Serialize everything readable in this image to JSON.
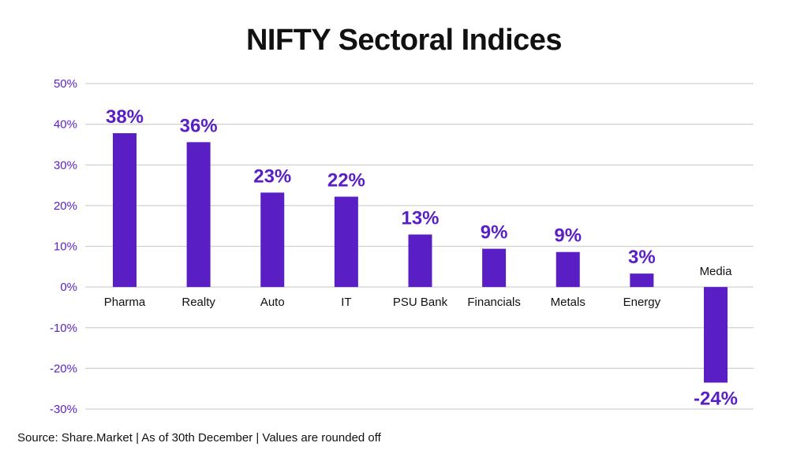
{
  "chart_data": {
    "type": "bar",
    "title": "NIFTY Sectoral Indices",
    "categories": [
      "Pharma",
      "Realty",
      "Auto",
      "IT",
      "PSU Bank",
      "Financials",
      "Metals",
      "Energy",
      "Media"
    ],
    "values": [
      37.8,
      35.6,
      23.2,
      22.2,
      12.9,
      9.4,
      8.6,
      3.3,
      -23.5
    ],
    "data_labels": [
      "38%",
      "36%",
      "23%",
      "22%",
      "13%",
      "9%",
      "9%",
      "3%",
      "-24%"
    ],
    "ylim": [
      -30,
      50
    ],
    "yticks": [
      50,
      40,
      30,
      20,
      10,
      0,
      -10,
      -20,
      -30
    ],
    "ytick_labels": [
      "50%",
      "40%",
      "30%",
      "20%",
      "10%",
      "0%",
      "-10%",
      "-20%",
      "-30%"
    ],
    "xlabel": "",
    "ylabel": "",
    "grid": true,
    "legend": "none",
    "colors": {
      "bar": "#5a1fc4",
      "label": "#5a1fc4",
      "grid": "#d0d0d0",
      "axis_text": "#5a1fc4"
    }
  },
  "source_note": "Source: Share.Market | As of 30th December | Values are rounded off"
}
